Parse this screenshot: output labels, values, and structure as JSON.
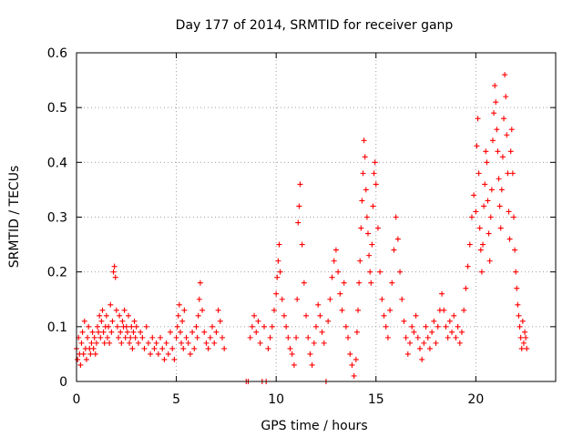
{
  "chart_data": {
    "type": "scatter",
    "title": "Day 177 of 2014, SRMTID for receiver ganp",
    "xlabel": "GPS time / hours",
    "ylabel": "SRMTID / TECUs",
    "xlim": [
      0,
      24
    ],
    "ylim": [
      0,
      0.6
    ],
    "grid": true,
    "marker": "+",
    "marker_color": "#ff0000",
    "x_ticks": [
      0,
      5,
      10,
      15,
      20
    ],
    "x_tick_labels": [
      "0",
      "5",
      "10",
      "15",
      "20"
    ],
    "y_ticks": [
      0,
      0.1,
      0.2,
      0.3,
      0.4,
      0.5,
      0.6
    ],
    "y_tick_labels": [
      "0",
      "0.1",
      "0.2",
      "0.3",
      "0.4",
      "0.5",
      "0.6"
    ],
    "series": [
      {
        "name": "SRMTID",
        "x": [
          0.0,
          0.05,
          0.1,
          0.15,
          0.2,
          0.25,
          0.3,
          0.35,
          0.4,
          0.45,
          0.5,
          0.55,
          0.6,
          0.65,
          0.7,
          0.75,
          0.8,
          0.85,
          0.9,
          0.95,
          1.0,
          1.05,
          1.1,
          1.15,
          1.2,
          1.25,
          1.3,
          1.35,
          1.4,
          1.45,
          1.5,
          1.55,
          1.6,
          1.65,
          1.7,
          1.75,
          1.8,
          1.85,
          1.9,
          1.95,
          2.0,
          2.05,
          2.1,
          2.15,
          2.2,
          2.25,
          2.3,
          2.35,
          2.4,
          2.45,
          2.5,
          2.55,
          2.6,
          2.65,
          2.7,
          2.75,
          2.8,
          2.85,
          2.9,
          2.95,
          3.0,
          3.1,
          3.2,
          3.3,
          3.4,
          3.5,
          3.6,
          3.7,
          3.8,
          3.9,
          4.0,
          4.1,
          4.2,
          4.3,
          4.4,
          4.5,
          4.6,
          4.7,
          4.8,
          4.9,
          5.0,
          5.05,
          5.1,
          5.15,
          5.2,
          5.25,
          5.3,
          5.35,
          5.4,
          5.5,
          5.6,
          5.7,
          5.8,
          5.9,
          6.0,
          6.05,
          6.1,
          6.15,
          6.2,
          6.3,
          6.4,
          6.5,
          6.6,
          6.7,
          6.8,
          6.9,
          7.0,
          7.1,
          7.2,
          7.3,
          7.4,
          8.5,
          8.6,
          8.7,
          8.8,
          8.9,
          9.0,
          9.1,
          9.2,
          9.3,
          9.4,
          9.5,
          9.6,
          9.7,
          9.8,
          9.9,
          10.0,
          10.05,
          10.1,
          10.15,
          10.2,
          10.3,
          10.4,
          10.5,
          10.6,
          10.7,
          10.8,
          10.9,
          11.0,
          11.05,
          11.1,
          11.15,
          11.2,
          11.3,
          11.4,
          11.5,
          11.6,
          11.7,
          11.8,
          11.9,
          12.0,
          12.1,
          12.2,
          12.3,
          12.4,
          12.5,
          12.6,
          12.7,
          12.8,
          12.9,
          13.0,
          13.1,
          13.2,
          13.3,
          13.4,
          13.5,
          13.6,
          13.7,
          13.8,
          13.9,
          14.0,
          14.05,
          14.1,
          14.15,
          14.2,
          14.25,
          14.3,
          14.35,
          14.4,
          14.45,
          14.5,
          14.55,
          14.6,
          14.65,
          14.7,
          14.75,
          14.8,
          14.85,
          14.9,
          14.95,
          15.0,
          15.1,
          15.2,
          15.3,
          15.4,
          15.5,
          15.6,
          15.7,
          15.8,
          15.9,
          16.0,
          16.1,
          16.2,
          16.3,
          16.4,
          16.5,
          16.6,
          16.7,
          16.8,
          16.9,
          17.0,
          17.1,
          17.2,
          17.3,
          17.4,
          17.5,
          17.6,
          17.7,
          17.8,
          17.9,
          18.0,
          18.1,
          18.2,
          18.3,
          18.4,
          18.5,
          18.6,
          18.7,
          18.8,
          18.9,
          19.0,
          19.1,
          19.2,
          19.3,
          19.4,
          19.5,
          19.6,
          19.7,
          19.8,
          19.9,
          20.0,
          20.05,
          20.1,
          20.15,
          20.2,
          20.25,
          20.3,
          20.35,
          20.4,
          20.45,
          20.5,
          20.55,
          20.6,
          20.65,
          20.7,
          20.75,
          20.8,
          20.85,
          20.9,
          20.95,
          21.0,
          21.05,
          21.1,
          21.15,
          21.2,
          21.25,
          21.3,
          21.35,
          21.4,
          21.45,
          21.5,
          21.55,
          21.6,
          21.65,
          21.7,
          21.75,
          21.8,
          21.85,
          21.9,
          21.95,
          22.0,
          22.05,
          22.1,
          22.15,
          22.2,
          22.25,
          22.3,
          22.35,
          22.4,
          22.45,
          22.5,
          22.55
        ],
        "y": [
          0.06,
          0.04,
          0.08,
          0.05,
          0.03,
          0.07,
          0.09,
          0.05,
          0.11,
          0.06,
          0.04,
          0.08,
          0.1,
          0.06,
          0.05,
          0.07,
          0.09,
          0.06,
          0.08,
          0.05,
          0.07,
          0.1,
          0.09,
          0.12,
          0.08,
          0.11,
          0.13,
          0.09,
          0.07,
          0.1,
          0.12,
          0.08,
          0.1,
          0.07,
          0.14,
          0.09,
          0.11,
          0.2,
          0.21,
          0.19,
          0.13,
          0.1,
          0.08,
          0.12,
          0.09,
          0.07,
          0.11,
          0.1,
          0.13,
          0.08,
          0.1,
          0.09,
          0.12,
          0.07,
          0.08,
          0.1,
          0.06,
          0.09,
          0.11,
          0.08,
          0.1,
          0.07,
          0.09,
          0.08,
          0.06,
          0.1,
          0.07,
          0.05,
          0.08,
          0.06,
          0.07,
          0.05,
          0.08,
          0.06,
          0.04,
          0.07,
          0.05,
          0.09,
          0.06,
          0.04,
          0.08,
          0.1,
          0.12,
          0.14,
          0.09,
          0.07,
          0.11,
          0.06,
          0.13,
          0.08,
          0.07,
          0.05,
          0.09,
          0.06,
          0.1,
          0.08,
          0.12,
          0.15,
          0.18,
          0.13,
          0.09,
          0.07,
          0.06,
          0.08,
          0.1,
          0.07,
          0.09,
          0.13,
          0.11,
          0.08,
          0.06,
          0.0,
          0.0,
          0.08,
          0.1,
          0.12,
          0.09,
          0.11,
          0.07,
          0.0,
          0.1,
          0.0,
          0.06,
          0.08,
          0.1,
          0.13,
          0.16,
          0.19,
          0.22,
          0.25,
          0.2,
          0.15,
          0.12,
          0.1,
          0.08,
          0.06,
          0.05,
          0.03,
          0.08,
          0.15,
          0.29,
          0.32,
          0.36,
          0.25,
          0.18,
          0.12,
          0.08,
          0.05,
          0.03,
          0.07,
          0.1,
          0.14,
          0.12,
          0.09,
          0.07,
          0.0,
          0.11,
          0.15,
          0.19,
          0.22,
          0.24,
          0.2,
          0.16,
          0.13,
          0.18,
          0.1,
          0.08,
          0.05,
          0.03,
          0.01,
          0.04,
          0.09,
          0.13,
          0.18,
          0.22,
          0.28,
          0.33,
          0.38,
          0.44,
          0.41,
          0.35,
          0.3,
          0.27,
          0.23,
          0.2,
          0.18,
          0.25,
          0.32,
          0.38,
          0.4,
          0.36,
          0.28,
          0.2,
          0.15,
          0.12,
          0.1,
          0.08,
          0.13,
          0.18,
          0.24,
          0.3,
          0.26,
          0.2,
          0.15,
          0.11,
          0.08,
          0.05,
          0.07,
          0.1,
          0.09,
          0.12,
          0.08,
          0.06,
          0.04,
          0.07,
          0.1,
          0.08,
          0.06,
          0.09,
          0.11,
          0.07,
          0.1,
          0.13,
          0.16,
          0.13,
          0.1,
          0.08,
          0.11,
          0.09,
          0.12,
          0.08,
          0.1,
          0.07,
          0.09,
          0.13,
          0.17,
          0.21,
          0.25,
          0.3,
          0.34,
          0.31,
          0.43,
          0.48,
          0.38,
          0.28,
          0.24,
          0.2,
          0.25,
          0.32,
          0.36,
          0.42,
          0.4,
          0.33,
          0.27,
          0.22,
          0.3,
          0.35,
          0.44,
          0.49,
          0.54,
          0.51,
          0.46,
          0.42,
          0.37,
          0.32,
          0.28,
          0.35,
          0.41,
          0.48,
          0.56,
          0.52,
          0.45,
          0.38,
          0.31,
          0.26,
          0.42,
          0.46,
          0.38,
          0.3,
          0.24,
          0.2,
          0.17,
          0.14,
          0.12,
          0.1,
          0.08,
          0.06,
          0.11,
          0.07,
          0.09,
          0.08,
          0.06
        ]
      }
    ]
  }
}
